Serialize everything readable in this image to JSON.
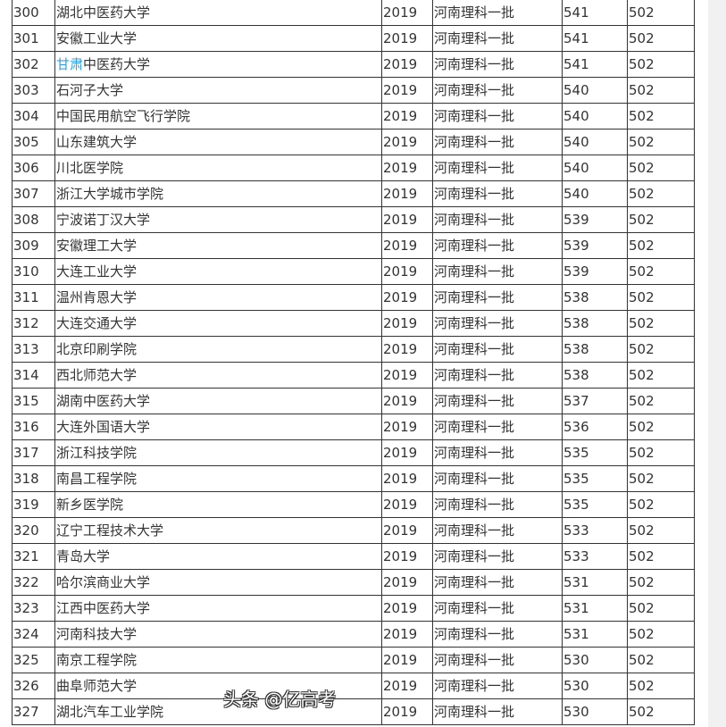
{
  "rows": [
    {
      "rank": "300",
      "school": "湖北中医药大学",
      "year": "2019",
      "batch": "河南理科一批",
      "score": "541",
      "line": "502"
    },
    {
      "rank": "301",
      "school": "安徽工业大学",
      "year": "2019",
      "batch": "河南理科一批",
      "score": "541",
      "line": "502"
    },
    {
      "rank": "302",
      "school_link": "甘肃",
      "school_rest": "中医药大学",
      "year": "2019",
      "batch": "河南理科一批",
      "score": "541",
      "line": "502"
    },
    {
      "rank": "303",
      "school": "石河子大学",
      "year": "2019",
      "batch": "河南理科一批",
      "score": "540",
      "line": "502"
    },
    {
      "rank": "304",
      "school": "中国民用航空飞行学院",
      "year": "2019",
      "batch": "河南理科一批",
      "score": "540",
      "line": "502"
    },
    {
      "rank": "305",
      "school": "山东建筑大学",
      "year": "2019",
      "batch": "河南理科一批",
      "score": "540",
      "line": "502"
    },
    {
      "rank": "306",
      "school": "川北医学院",
      "year": "2019",
      "batch": "河南理科一批",
      "score": "540",
      "line": "502"
    },
    {
      "rank": "307",
      "school": "浙江大学城市学院",
      "year": "2019",
      "batch": "河南理科一批",
      "score": "540",
      "line": "502"
    },
    {
      "rank": "308",
      "school": "宁波诺丁汉大学",
      "year": "2019",
      "batch": "河南理科一批",
      "score": "539",
      "line": "502"
    },
    {
      "rank": "309",
      "school": "安徽理工大学",
      "year": "2019",
      "batch": "河南理科一批",
      "score": "539",
      "line": "502"
    },
    {
      "rank": "310",
      "school": "大连工业大学",
      "year": "2019",
      "batch": "河南理科一批",
      "score": "539",
      "line": "502"
    },
    {
      "rank": "311",
      "school": "温州肯恩大学",
      "year": "2019",
      "batch": "河南理科一批",
      "score": "538",
      "line": "502"
    },
    {
      "rank": "312",
      "school": "大连交通大学",
      "year": "2019",
      "batch": "河南理科一批",
      "score": "538",
      "line": "502"
    },
    {
      "rank": "313",
      "school": "北京印刷学院",
      "year": "2019",
      "batch": "河南理科一批",
      "score": "538",
      "line": "502"
    },
    {
      "rank": "314",
      "school": "西北师范大学",
      "year": "2019",
      "batch": "河南理科一批",
      "score": "538",
      "line": "502"
    },
    {
      "rank": "315",
      "school": "湖南中医药大学",
      "year": "2019",
      "batch": "河南理科一批",
      "score": "537",
      "line": "502"
    },
    {
      "rank": "316",
      "school": "大连外国语大学",
      "year": "2019",
      "batch": "河南理科一批",
      "score": "536",
      "line": "502"
    },
    {
      "rank": "317",
      "school": "浙江科技学院",
      "year": "2019",
      "batch": "河南理科一批",
      "score": "535",
      "line": "502"
    },
    {
      "rank": "318",
      "school": "南昌工程学院",
      "year": "2019",
      "batch": "河南理科一批",
      "score": "535",
      "line": "502"
    },
    {
      "rank": "319",
      "school": "新乡医学院",
      "year": "2019",
      "batch": "河南理科一批",
      "score": "535",
      "line": "502"
    },
    {
      "rank": "320",
      "school": "辽宁工程技术大学",
      "year": "2019",
      "batch": "河南理科一批",
      "score": "533",
      "line": "502"
    },
    {
      "rank": "321",
      "school": "青岛大学",
      "year": "2019",
      "batch": "河南理科一批",
      "score": "533",
      "line": "502"
    },
    {
      "rank": "322",
      "school": "哈尔滨商业大学",
      "year": "2019",
      "batch": "河南理科一批",
      "score": "531",
      "line": "502"
    },
    {
      "rank": "323",
      "school": "江西中医药大学",
      "year": "2019",
      "batch": "河南理科一批",
      "score": "531",
      "line": "502"
    },
    {
      "rank": "324",
      "school": "河南科技大学",
      "year": "2019",
      "batch": "河南理科一批",
      "score": "531",
      "line": "502"
    },
    {
      "rank": "325",
      "school": "南京工程学院",
      "year": "2019",
      "batch": "河南理科一批",
      "score": "530",
      "line": "502"
    },
    {
      "rank": "326",
      "school": "曲阜师范大学",
      "year": "2019",
      "batch": "河南理科一批",
      "score": "530",
      "line": "502"
    },
    {
      "rank": "327",
      "school": "湖北汽车工业学院",
      "year": "2019",
      "batch": "河南理科一批",
      "score": "530",
      "line": "502"
    }
  ],
  "watermark": "头条 @亿高考",
  "colors": {
    "link": "#2fa0e8",
    "scrollbar": "#f1f1f1"
  }
}
